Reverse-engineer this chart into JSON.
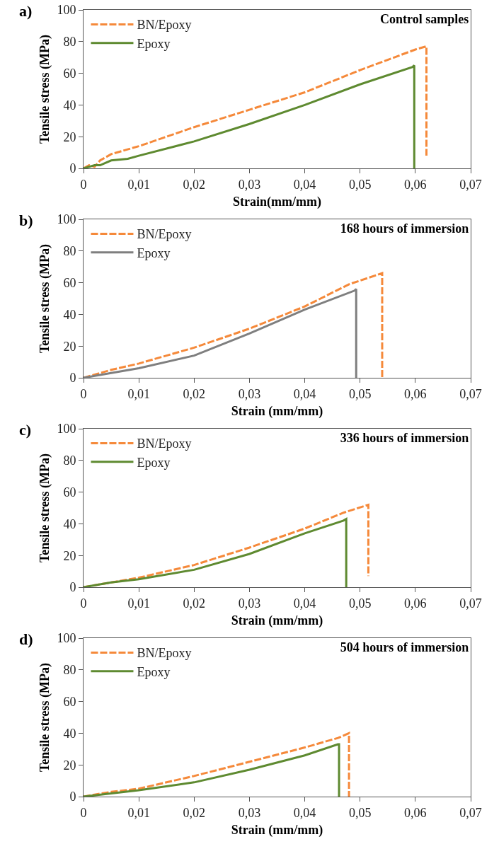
{
  "chart_data": [
    {
      "type": "line",
      "title": "Control samples",
      "annotations": [
        "a)"
      ],
      "xlabel": "Strain(mm/mm)",
      "ylabel": "Tensile stress (MPa)",
      "legend": "top left",
      "grid": false,
      "xlim": [
        0,
        0.07
      ],
      "ylim": [
        0,
        100
      ],
      "xticks": [
        {
          "value": 0,
          "label": "0"
        },
        {
          "value": 0.01,
          "label": "0,01"
        },
        {
          "value": 0.02,
          "label": "0,02"
        },
        {
          "value": 0.03,
          "label": "0,03"
        },
        {
          "value": 0.04,
          "label": "0,04"
        },
        {
          "value": 0.05,
          "label": "0,05"
        },
        {
          "value": 0.06,
          "label": "0,06"
        },
        {
          "value": 0.07,
          "label": "0,07"
        }
      ],
      "yticks": [
        0,
        20,
        40,
        60,
        80,
        100
      ],
      "series": [
        {
          "name": "BN/Epoxy",
          "color": "#f5893a",
          "line_style": "dashed",
          "x": [
            0,
            0.001,
            0.002,
            0.003,
            0.005,
            0.01,
            0.02,
            0.03,
            0.04,
            0.05,
            0.06,
            0.062,
            0.062
          ],
          "values": [
            0,
            2,
            1,
            5,
            9,
            14,
            26,
            37,
            48,
            62,
            75,
            77,
            8
          ]
        },
        {
          "name": "Epoxy",
          "color": "#5e8a30",
          "line_style": "solid",
          "x": [
            0,
            0.002,
            0.003,
            0.005,
            0.008,
            0.01,
            0.02,
            0.03,
            0.04,
            0.05,
            0.0595,
            0.0598,
            0.0598
          ],
          "values": [
            0,
            2,
            2,
            5,
            6,
            8,
            17,
            28,
            40,
            53,
            64,
            65,
            0
          ]
        }
      ]
    },
    {
      "type": "line",
      "title": "168 hours of immersion",
      "annotations": [
        "b)"
      ],
      "xlabel": "Strain (mm/mm)",
      "ylabel": "Tensile stress (MPa)",
      "legend": "top left",
      "grid": false,
      "xlim": [
        0,
        0.07
      ],
      "ylim": [
        0,
        100
      ],
      "xticks": [
        {
          "value": 0,
          "label": "0"
        },
        {
          "value": 0.01,
          "label": "0,01"
        },
        {
          "value": 0.02,
          "label": "0,02"
        },
        {
          "value": 0.03,
          "label": "0,03"
        },
        {
          "value": 0.04,
          "label": "0,04"
        },
        {
          "value": 0.05,
          "label": "0,05"
        },
        {
          "value": 0.06,
          "label": "0,06"
        },
        {
          "value": 0.07,
          "label": "0,07"
        }
      ],
      "yticks": [
        0,
        20,
        40,
        60,
        80,
        100
      ],
      "series": [
        {
          "name": "BN/Epoxy",
          "color": "#f5893a",
          "line_style": "dashed",
          "x": [
            0,
            0.005,
            0.01,
            0.02,
            0.03,
            0.04,
            0.048,
            0.054,
            0.054
          ],
          "values": [
            0,
            5,
            9,
            19,
            31,
            45,
            59,
            66,
            0
          ]
        },
        {
          "name": "Epoxy",
          "color": "#7f7f7f",
          "line_style": "solid",
          "x": [
            0,
            0.005,
            0.01,
            0.02,
            0.03,
            0.04,
            0.049,
            0.0493,
            0.0493
          ],
          "values": [
            0,
            3,
            6,
            14,
            28,
            43,
            55,
            56,
            0
          ]
        }
      ]
    },
    {
      "type": "line",
      "title": "336 hours of immersion",
      "annotations": [
        "c)"
      ],
      "xlabel": "Strain (mm/mm)",
      "ylabel": "Tensile stress (MPa)",
      "legend": "top left",
      "grid": false,
      "xlim": [
        0,
        0.07
      ],
      "ylim": [
        0,
        100
      ],
      "xticks": [
        {
          "value": 0,
          "label": "0"
        },
        {
          "value": 0.01,
          "label": "0,01"
        },
        {
          "value": 0.02,
          "label": "0,02"
        },
        {
          "value": 0.03,
          "label": "0,03"
        },
        {
          "value": 0.04,
          "label": "0,04"
        },
        {
          "value": 0.05,
          "label": "0,05"
        },
        {
          "value": 0.06,
          "label": "0,06"
        },
        {
          "value": 0.07,
          "label": "0,07"
        }
      ],
      "yticks": [
        0,
        20,
        40,
        60,
        80,
        100
      ],
      "series": [
        {
          "name": "BN/Epoxy",
          "color": "#f5893a",
          "line_style": "dashed",
          "x": [
            0,
            0.005,
            0.01,
            0.02,
            0.03,
            0.04,
            0.047,
            0.0515,
            0.0515
          ],
          "values": [
            0,
            3,
            6,
            14,
            25,
            37,
            47,
            52,
            7
          ]
        },
        {
          "name": "Epoxy",
          "color": "#5e8a30",
          "line_style": "solid",
          "x": [
            0,
            0.005,
            0.01,
            0.02,
            0.03,
            0.04,
            0.047,
            0.0475,
            0.0475
          ],
          "values": [
            0,
            3,
            5,
            11,
            21,
            34,
            42,
            43,
            0
          ]
        }
      ]
    },
    {
      "type": "line",
      "title": "504 hours of immersion",
      "annotations": [
        "d)"
      ],
      "xlabel": "Strain (mm/mm)",
      "ylabel": "Tensile stress (MPa)",
      "legend": "top left",
      "grid": false,
      "xlim": [
        0,
        0.07
      ],
      "ylim": [
        0,
        100
      ],
      "xticks": [
        {
          "value": 0,
          "label": "0"
        },
        {
          "value": 0.01,
          "label": "0,01"
        },
        {
          "value": 0.02,
          "label": "0,02"
        },
        {
          "value": 0.03,
          "label": "0,03"
        },
        {
          "value": 0.04,
          "label": "0,04"
        },
        {
          "value": 0.05,
          "label": "0,05"
        },
        {
          "value": 0.06,
          "label": "0,06"
        },
        {
          "value": 0.07,
          "label": "0,07"
        }
      ],
      "yticks": [
        0,
        20,
        40,
        60,
        80,
        100
      ],
      "series": [
        {
          "name": "BN/Epoxy",
          "color": "#f5893a",
          "line_style": "dashed",
          "x": [
            0,
            0.005,
            0.01,
            0.02,
            0.03,
            0.04,
            0.046,
            0.048,
            0.048
          ],
          "values": [
            0,
            3,
            5,
            13,
            22,
            31,
            37,
            40,
            0
          ]
        },
        {
          "name": "Epoxy",
          "color": "#5e8a30",
          "line_style": "solid",
          "x": [
            0,
            0.005,
            0.01,
            0.02,
            0.03,
            0.04,
            0.046,
            0.0462,
            0.0462
          ],
          "values": [
            0,
            2,
            4,
            9,
            17,
            26,
            33,
            33,
            0
          ]
        }
      ]
    }
  ]
}
